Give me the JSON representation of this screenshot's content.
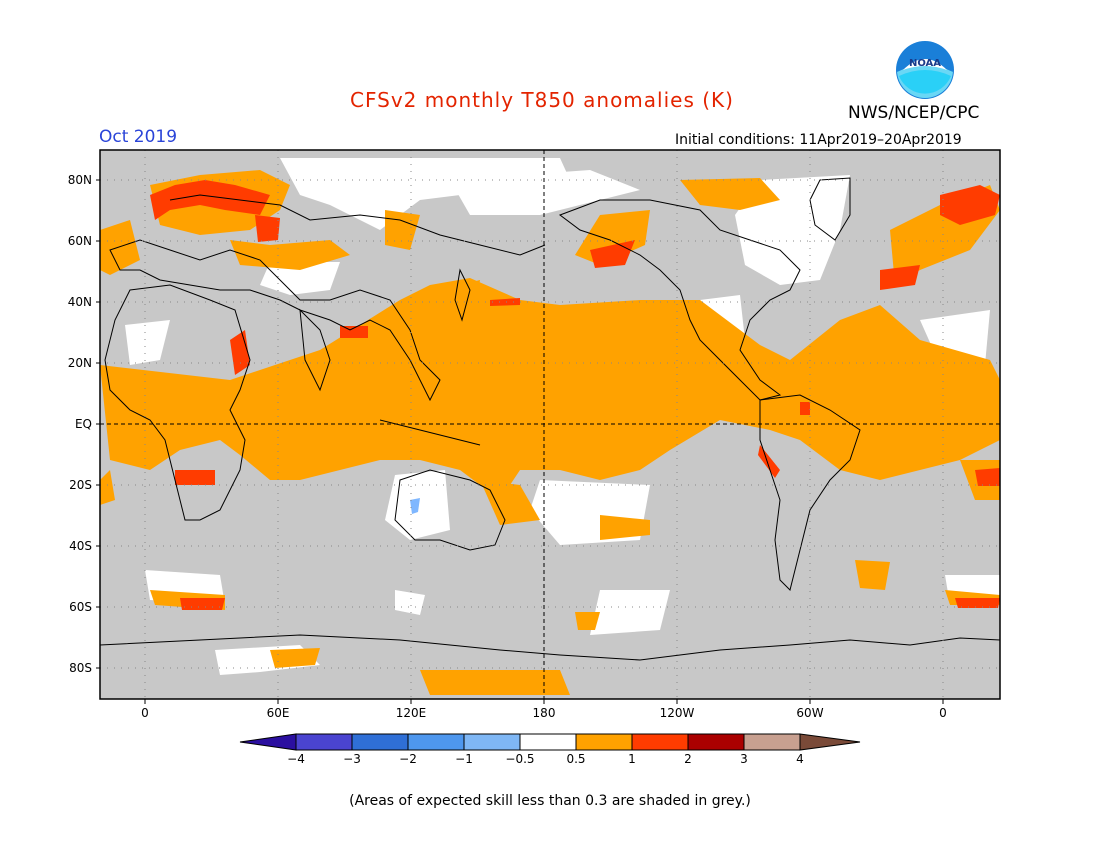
{
  "header": {
    "title": "CFSv2 monthly T850 anomalies (K)",
    "month": "Oct 2019",
    "agency": "NWS/NCEP/CPC",
    "initial_conditions": "Initial conditions: 11Apr2019–20Apr2019",
    "logo_text": "NOAA"
  },
  "colors": {
    "title": "#e32400",
    "month": "#2a44d8",
    "grey_skill": "#c8c8c8",
    "ocean_white": "#ffffff",
    "anom_0_5_1": "#ffa200",
    "anom_1_2": "#ff3c00",
    "anom_2_3": "#aa0000",
    "anom_neg": "#7fb7ff"
  },
  "map": {
    "lat_labels": [
      "80N",
      "60N",
      "40N",
      "20N",
      "EQ",
      "20S",
      "40S",
      "60S",
      "80S"
    ],
    "lon_labels": [
      "0",
      "60E",
      "120E",
      "180",
      "120W",
      "60W",
      "0"
    ]
  },
  "colorbar": {
    "ticks": [
      "−4",
      "−3",
      "−2",
      "−1",
      "−0.5",
      "0.5",
      "1",
      "2",
      "3",
      "4"
    ],
    "colors": [
      "#2b0fa0",
      "#4a44d0",
      "#2f6fd6",
      "#4e97ee",
      "#7fb7f5",
      "#ffffff",
      "#ffa200",
      "#ff3c00",
      "#aa0000",
      "#c8a090",
      "#7a4a38"
    ]
  },
  "footnote": "(Areas of expected skill less than 0.3 are shaded in grey.)"
}
